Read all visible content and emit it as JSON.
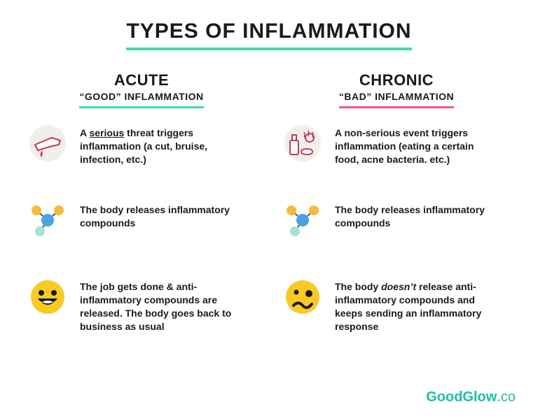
{
  "type": "infographic",
  "background_color": "#ffffff",
  "text_color": "#1a1a1a",
  "title": {
    "text": "TYPES OF INFLAMMATION",
    "fontsize": 30,
    "underline_color": "#47d7ac"
  },
  "columns": [
    {
      "id": "acute",
      "title": "ACUTE",
      "subtitle": "“GOOD” INFLAMMATION",
      "underline_color": "#47d7ac",
      "rows": [
        {
          "icon": "cut-hand",
          "text_before": "A ",
          "text_emph": "serious",
          "emph_style": "underline",
          "text_after": " threat triggers inflammation (a cut, bruise, infection, etc.)"
        },
        {
          "icon": "molecule",
          "text_before": "The body releases inflammatory compounds",
          "text_emph": "",
          "emph_style": "none",
          "text_after": ""
        },
        {
          "icon": "happy-face",
          "text_before": "The job gets done & anti-inflammatory compounds are released. The body goes back to business as usual",
          "text_emph": "",
          "emph_style": "none",
          "text_after": ""
        }
      ]
    },
    {
      "id": "chronic",
      "title": "CHRONIC",
      "subtitle": "“BAD” INFLAMMATION",
      "underline_color": "#ed5a8b",
      "rows": [
        {
          "icon": "junk-food",
          "text_before": "A non-serious event triggers inflammation (eating a certain food, acne bacteria. etc.)",
          "text_emph": "",
          "emph_style": "none",
          "text_after": ""
        },
        {
          "icon": "molecule",
          "text_before": "The body releases inflammatory compounds",
          "text_emph": "",
          "emph_style": "none",
          "text_after": ""
        },
        {
          "icon": "woozy-face",
          "text_before": "The body ",
          "text_emph": "doesn’t",
          "emph_style": "italic",
          "text_after": " release anti-inflammatory compounds and keeps sending an inflammatory response"
        }
      ]
    }
  ],
  "icons": {
    "molecule": {
      "node_colors": [
        "#f6b93b",
        "#4aa3df",
        "#a3e4d7",
        "#f6b93b"
      ],
      "bond_color": "#555555"
    },
    "happy-face": {
      "fill": "#f9ca24",
      "stroke": "#1a1a1a"
    },
    "woozy-face": {
      "fill": "#f9ca24",
      "stroke": "#1a1a1a"
    },
    "cut-hand": {
      "bg": "#f1efe9",
      "line": "#c0395c",
      "drop": "#c0395c"
    },
    "junk-food": {
      "bg": "#f1efe9",
      "line": "#c0395c"
    }
  },
  "brand": {
    "name": "GoodGlow",
    "suffix": ".co",
    "color": "#1fbfa2"
  }
}
